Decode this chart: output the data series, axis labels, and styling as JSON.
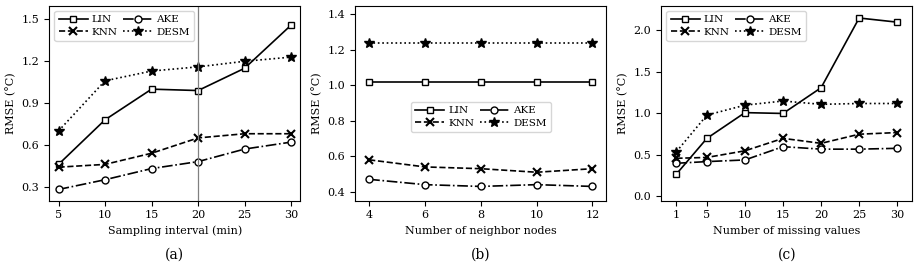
{
  "subplot_a": {
    "x": [
      5,
      10,
      15,
      20,
      25,
      30
    ],
    "LIN": [
      0.46,
      0.78,
      1.0,
      0.99,
      1.15,
      1.46
    ],
    "KNN": [
      0.44,
      0.46,
      0.54,
      0.65,
      0.68,
      0.68
    ],
    "AKE": [
      0.28,
      0.35,
      0.43,
      0.48,
      0.57,
      0.62
    ],
    "DESM": [
      0.7,
      1.06,
      1.13,
      1.16,
      1.2,
      1.23
    ],
    "vline_x": 20,
    "xlabel": "Sampling interval (min)",
    "ylabel": "RMSE (°C)",
    "ylim": [
      0.2,
      1.6
    ],
    "yticks": [
      0.3,
      0.6,
      0.9,
      1.2,
      1.5
    ],
    "xlim": [
      4,
      31
    ],
    "xticks": [
      5,
      10,
      15,
      20,
      25,
      30
    ],
    "label": "(a)"
  },
  "subplot_b": {
    "x": [
      4,
      6,
      8,
      10,
      12
    ],
    "LIN": [
      1.02,
      1.02,
      1.02,
      1.02,
      1.02
    ],
    "KNN": [
      0.58,
      0.54,
      0.53,
      0.51,
      0.53
    ],
    "AKE": [
      0.47,
      0.44,
      0.43,
      0.44,
      0.43
    ],
    "DESM": [
      1.24,
      1.24,
      1.24,
      1.24,
      1.24
    ],
    "xlabel": "Number of neighbor nodes",
    "ylabel": "RMSE (°C)",
    "ylim": [
      0.35,
      1.45
    ],
    "yticks": [
      0.4,
      0.6,
      0.8,
      1.0,
      1.2,
      1.4
    ],
    "xlim": [
      3.5,
      12.5
    ],
    "xticks": [
      4,
      6,
      8,
      10,
      12
    ],
    "label": "(b)"
  },
  "subplot_c": {
    "x": [
      1,
      5,
      10,
      15,
      20,
      25,
      30
    ],
    "LIN": [
      0.27,
      0.7,
      1.01,
      1.0,
      1.31,
      2.15,
      2.1
    ],
    "KNN": [
      0.46,
      0.47,
      0.55,
      0.7,
      0.64,
      0.75,
      0.77
    ],
    "AKE": [
      0.4,
      0.42,
      0.44,
      0.6,
      0.57,
      0.57,
      0.58
    ],
    "DESM": [
      0.54,
      0.98,
      1.1,
      1.15,
      1.11,
      1.12,
      1.12
    ],
    "xlabel": "Number of missing values",
    "ylabel": "RMSE (°C)",
    "ylim": [
      -0.05,
      2.3
    ],
    "yticks": [
      0.0,
      0.5,
      1.0,
      1.5,
      2.0
    ],
    "xlim": [
      -1,
      32
    ],
    "xticks": [
      1,
      5,
      10,
      15,
      20,
      25,
      30
    ],
    "label": "(c)"
  }
}
